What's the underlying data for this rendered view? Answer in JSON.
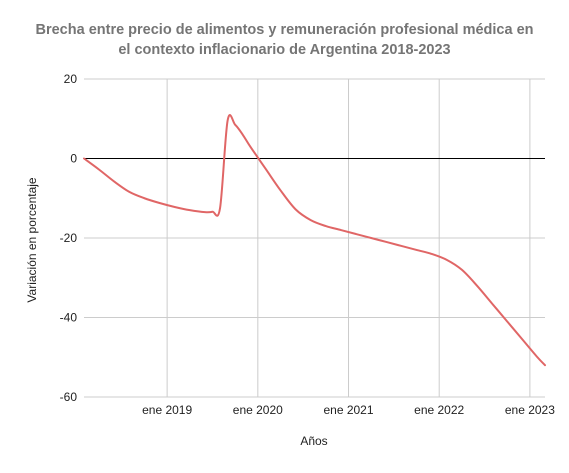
{
  "chart_data": {
    "type": "line",
    "title_lines": [
      "Brecha entre precio de alimentos y remuneración profesional médica en",
      "el contexto inflacionario de Argentina 2018-2023"
    ],
    "xlabel": "Años",
    "ylabel": "Variación en porcentaje",
    "x_ticks": [
      {
        "value": "2019-01",
        "label": "ene 2019"
      },
      {
        "value": "2020-01",
        "label": "ene 2020"
      },
      {
        "value": "2021-01",
        "label": "ene 2021"
      },
      {
        "value": "2022-01",
        "label": "ene 2022"
      },
      {
        "value": "2023-01",
        "label": "ene 2023"
      }
    ],
    "xlim": [
      "2018-02",
      "2023-03"
    ],
    "y_ticks": [
      20,
      0,
      -20,
      -40,
      -60
    ],
    "ylim": [
      -60,
      20
    ],
    "grid": true,
    "legend": "none",
    "series": [
      {
        "color": "#e06666",
        "points": [
          {
            "x": "2018-02",
            "y": 0
          },
          {
            "x": "2018-04",
            "y": -2.8
          },
          {
            "x": "2018-06",
            "y": -5.8
          },
          {
            "x": "2018-08",
            "y": -8.4
          },
          {
            "x": "2018-10",
            "y": -10
          },
          {
            "x": "2018-12",
            "y": -11.2
          },
          {
            "x": "2019-02",
            "y": -12.2
          },
          {
            "x": "2019-04",
            "y": -13
          },
          {
            "x": "2019-06",
            "y": -13.5
          },
          {
            "x": "2019-07",
            "y": -13.4
          },
          {
            "x": "2019-08",
            "y": -12.5
          },
          {
            "x": "2019-09",
            "y": 9.5
          },
          {
            "x": "2019-10",
            "y": 8.5
          },
          {
            "x": "2019-11",
            "y": 6
          },
          {
            "x": "2019-12",
            "y": 3
          },
          {
            "x": "2020-02",
            "y": -2.5
          },
          {
            "x": "2020-04",
            "y": -8
          },
          {
            "x": "2020-06",
            "y": -12.8
          },
          {
            "x": "2020-08",
            "y": -15.5
          },
          {
            "x": "2020-10",
            "y": -17
          },
          {
            "x": "2020-12",
            "y": -18
          },
          {
            "x": "2021-02",
            "y": -19
          },
          {
            "x": "2021-04",
            "y": -20
          },
          {
            "x": "2021-06",
            "y": -21
          },
          {
            "x": "2021-08",
            "y": -22
          },
          {
            "x": "2021-10",
            "y": -23
          },
          {
            "x": "2021-12",
            "y": -24
          },
          {
            "x": "2022-02",
            "y": -25.5
          },
          {
            "x": "2022-04",
            "y": -28
          },
          {
            "x": "2022-06",
            "y": -32
          },
          {
            "x": "2022-08",
            "y": -36.5
          },
          {
            "x": "2022-10",
            "y": -41
          },
          {
            "x": "2022-12",
            "y": -45.5
          },
          {
            "x": "2023-02",
            "y": -50
          },
          {
            "x": "2023-03",
            "y": -52
          }
        ]
      }
    ],
    "colors": {
      "line": "#e06666",
      "grid": "#cccccc",
      "zero_line": "#000000",
      "title": "#757575",
      "text": "#222222"
    }
  }
}
